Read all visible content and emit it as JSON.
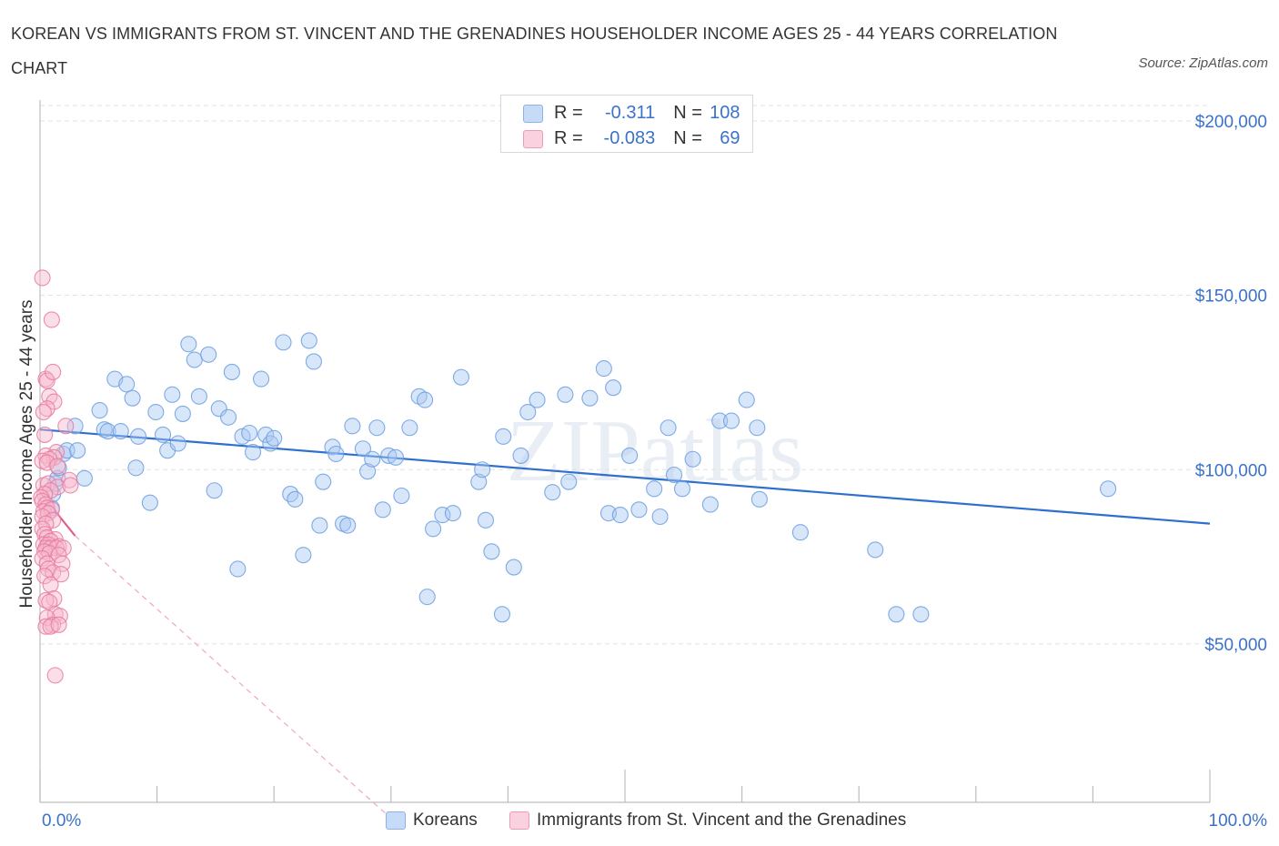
{
  "title": "KOREAN VS IMMIGRANTS FROM ST. VINCENT AND THE GRENADINES HOUSEHOLDER INCOME AGES 25 - 44 YEARS CORRELATION CHART",
  "source": "Source: ZipAtlas.com",
  "watermark": "ZIPatlas",
  "legend": {
    "rows": [
      {
        "r_label": "R =",
        "r_value": "-0.311",
        "n_label": "N =",
        "n_value": "108",
        "color": "#a9c7f2"
      },
      {
        "r_label": "R =",
        "r_value": "-0.083",
        "n_label": "N =",
        "n_value": "69",
        "color": "#f6b8cc"
      }
    ]
  },
  "chart_data": {
    "type": "scatter",
    "title": "KOREAN VS IMMIGRANTS FROM ST. VINCENT AND THE GRENADINES HOUSEHOLDER INCOME AGES 25 - 44 YEARS CORRELATION CHART",
    "xlabel": "",
    "ylabel": "Householder Income Ages 25 - 44 years",
    "xlim": [
      0,
      100
    ],
    "ylim": [
      0,
      200000
    ],
    "x_tick_labels": [
      "0.0%",
      "100.0%"
    ],
    "y_ticks": [
      {
        "value": 200000,
        "label": "$200,000"
      },
      {
        "value": 150000,
        "label": "$150,000"
      },
      {
        "value": 100000,
        "label": "$100,000"
      },
      {
        "value": 50000,
        "label": "$50,000"
      }
    ],
    "grid": true,
    "series": [
      {
        "name": "Koreans",
        "color": "#6b9ee0",
        "fill": "#a9c7f2",
        "trend": {
          "x": [
            0,
            100
          ],
          "y": [
            111500,
            84500
          ]
        },
        "points": [
          [
            1.0,
            89000
          ],
          [
            1.1,
            93000
          ],
          [
            1.3,
            96000
          ],
          [
            1.5,
            97500
          ],
          [
            1.6,
            100500
          ],
          [
            2.0,
            104500
          ],
          [
            2.3,
            105500
          ],
          [
            3.0,
            112500
          ],
          [
            3.2,
            105500
          ],
          [
            3.8,
            97500
          ],
          [
            5.1,
            117000
          ],
          [
            5.5,
            111500
          ],
          [
            6.4,
            126000
          ],
          [
            5.8,
            111000
          ],
          [
            6.9,
            111000
          ],
          [
            7.4,
            124500
          ],
          [
            7.9,
            120500
          ],
          [
            8.4,
            109500
          ],
          [
            8.2,
            100500
          ],
          [
            9.4,
            90500
          ],
          [
            9.9,
            116500
          ],
          [
            10.5,
            110000
          ],
          [
            10.9,
            105500
          ],
          [
            11.3,
            121500
          ],
          [
            11.8,
            107500
          ],
          [
            12.2,
            116000
          ],
          [
            12.7,
            136000
          ],
          [
            13.2,
            131500
          ],
          [
            13.6,
            121000
          ],
          [
            14.4,
            133000
          ],
          [
            14.9,
            94000
          ],
          [
            15.3,
            117500
          ],
          [
            16.1,
            115000
          ],
          [
            16.4,
            128000
          ],
          [
            16.9,
            71500
          ],
          [
            17.3,
            109500
          ],
          [
            17.9,
            110500
          ],
          [
            18.2,
            105000
          ],
          [
            18.9,
            126000
          ],
          [
            19.3,
            110000
          ],
          [
            19.7,
            107500
          ],
          [
            20.0,
            109000
          ],
          [
            20.8,
            136500
          ],
          [
            21.4,
            93000
          ],
          [
            21.8,
            91500
          ],
          [
            22.5,
            75500
          ],
          [
            23.0,
            137000
          ],
          [
            23.4,
            131000
          ],
          [
            23.9,
            84000
          ],
          [
            24.2,
            96500
          ],
          [
            25.0,
            106500
          ],
          [
            25.3,
            104500
          ],
          [
            25.9,
            84500
          ],
          [
            26.3,
            84000
          ],
          [
            26.7,
            112500
          ],
          [
            27.6,
            106000
          ],
          [
            28.0,
            99500
          ],
          [
            28.4,
            103000
          ],
          [
            28.8,
            112000
          ],
          [
            29.3,
            88500
          ],
          [
            29.8,
            104000
          ],
          [
            30.4,
            103500
          ],
          [
            30.9,
            92500
          ],
          [
            31.6,
            112000
          ],
          [
            32.4,
            121000
          ],
          [
            32.9,
            120000
          ],
          [
            33.1,
            63500
          ],
          [
            33.6,
            83000
          ],
          [
            34.4,
            87000
          ],
          [
            35.3,
            87500
          ],
          [
            36.0,
            126500
          ],
          [
            37.5,
            96500
          ],
          [
            37.8,
            100000
          ],
          [
            38.1,
            85500
          ],
          [
            38.6,
            76500
          ],
          [
            39.5,
            58500
          ],
          [
            39.6,
            109500
          ],
          [
            40.5,
            72000
          ],
          [
            41.1,
            104000
          ],
          [
            41.7,
            116500
          ],
          [
            42.5,
            120000
          ],
          [
            43.8,
            93500
          ],
          [
            44.9,
            121500
          ],
          [
            45.2,
            96500
          ],
          [
            47.0,
            120500
          ],
          [
            48.2,
            129000
          ],
          [
            48.6,
            87500
          ],
          [
            49.0,
            123500
          ],
          [
            49.6,
            87000
          ],
          [
            50.4,
            104000
          ],
          [
            51.2,
            88500
          ],
          [
            52.5,
            94500
          ],
          [
            53.0,
            86500
          ],
          [
            53.7,
            112000
          ],
          [
            54.2,
            98500
          ],
          [
            54.9,
            94500
          ],
          [
            55.8,
            103000
          ],
          [
            57.3,
            90000
          ],
          [
            58.1,
            114000
          ],
          [
            59.1,
            114000
          ],
          [
            60.4,
            120000
          ],
          [
            61.3,
            112000
          ],
          [
            61.5,
            91500
          ],
          [
            65.0,
            82000
          ],
          [
            71.4,
            77000
          ],
          [
            73.2,
            58500
          ],
          [
            75.3,
            58500
          ],
          [
            91.3,
            94500
          ]
        ]
      },
      {
        "name": "Immigrants from St. Vincent and the Grenadines",
        "color": "#e87aa0",
        "fill": "#f6b8cc",
        "trend": {
          "x": [
            0,
            3
          ],
          "y": [
            93500,
            81000
          ]
        },
        "trend_extension": {
          "x": [
            3,
            30
          ],
          "y": [
            81000,
            0
          ]
        },
        "points": [
          [
            0.2,
            155000
          ],
          [
            1.0,
            143000
          ],
          [
            0.5,
            126000
          ],
          [
            0.6,
            125500
          ],
          [
            0.8,
            121000
          ],
          [
            1.1,
            128000
          ],
          [
            1.2,
            119500
          ],
          [
            0.6,
            117500
          ],
          [
            0.3,
            116500
          ],
          [
            2.2,
            112500
          ],
          [
            0.4,
            110000
          ],
          [
            1.4,
            105000
          ],
          [
            0.5,
            104000
          ],
          [
            1.2,
            103500
          ],
          [
            0.8,
            103000
          ],
          [
            0.2,
            102500
          ],
          [
            0.6,
            102000
          ],
          [
            1.5,
            101000
          ],
          [
            2.5,
            97000
          ],
          [
            0.3,
            95500
          ],
          [
            0.7,
            96000
          ],
          [
            1.5,
            95000
          ],
          [
            2.6,
            95500
          ],
          [
            0.9,
            94000
          ],
          [
            0.4,
            93000
          ],
          [
            0.1,
            92000
          ],
          [
            0.2,
            91000
          ],
          [
            0.5,
            90000
          ],
          [
            0.6,
            89000
          ],
          [
            0.3,
            88000
          ],
          [
            1.0,
            88500
          ],
          [
            0.7,
            87500
          ],
          [
            0.2,
            86500
          ],
          [
            1.1,
            85500
          ],
          [
            0.5,
            84500
          ],
          [
            0.2,
            83000
          ],
          [
            0.4,
            81500
          ],
          [
            0.6,
            80500
          ],
          [
            1.3,
            80000
          ],
          [
            0.9,
            79500
          ],
          [
            0.3,
            78500
          ],
          [
            0.7,
            78500
          ],
          [
            1.6,
            78000
          ],
          [
            0.5,
            77500
          ],
          [
            0.9,
            77500
          ],
          [
            1.4,
            77500
          ],
          [
            2.0,
            77500
          ],
          [
            0.4,
            76500
          ],
          [
            0.8,
            76000
          ],
          [
            1.6,
            75500
          ],
          [
            0.2,
            74500
          ],
          [
            0.6,
            73000
          ],
          [
            1.9,
            73000
          ],
          [
            0.7,
            71500
          ],
          [
            1.1,
            70500
          ],
          [
            1.8,
            70000
          ],
          [
            0.4,
            69500
          ],
          [
            0.9,
            67000
          ],
          [
            1.2,
            63000
          ],
          [
            0.5,
            62500
          ],
          [
            0.8,
            62000
          ],
          [
            1.3,
            58500
          ],
          [
            1.7,
            58000
          ],
          [
            0.6,
            57500
          ],
          [
            1.1,
            55500
          ],
          [
            0.5,
            55000
          ],
          [
            0.9,
            55000
          ],
          [
            1.6,
            55500
          ],
          [
            1.3,
            41000
          ]
        ]
      }
    ]
  }
}
